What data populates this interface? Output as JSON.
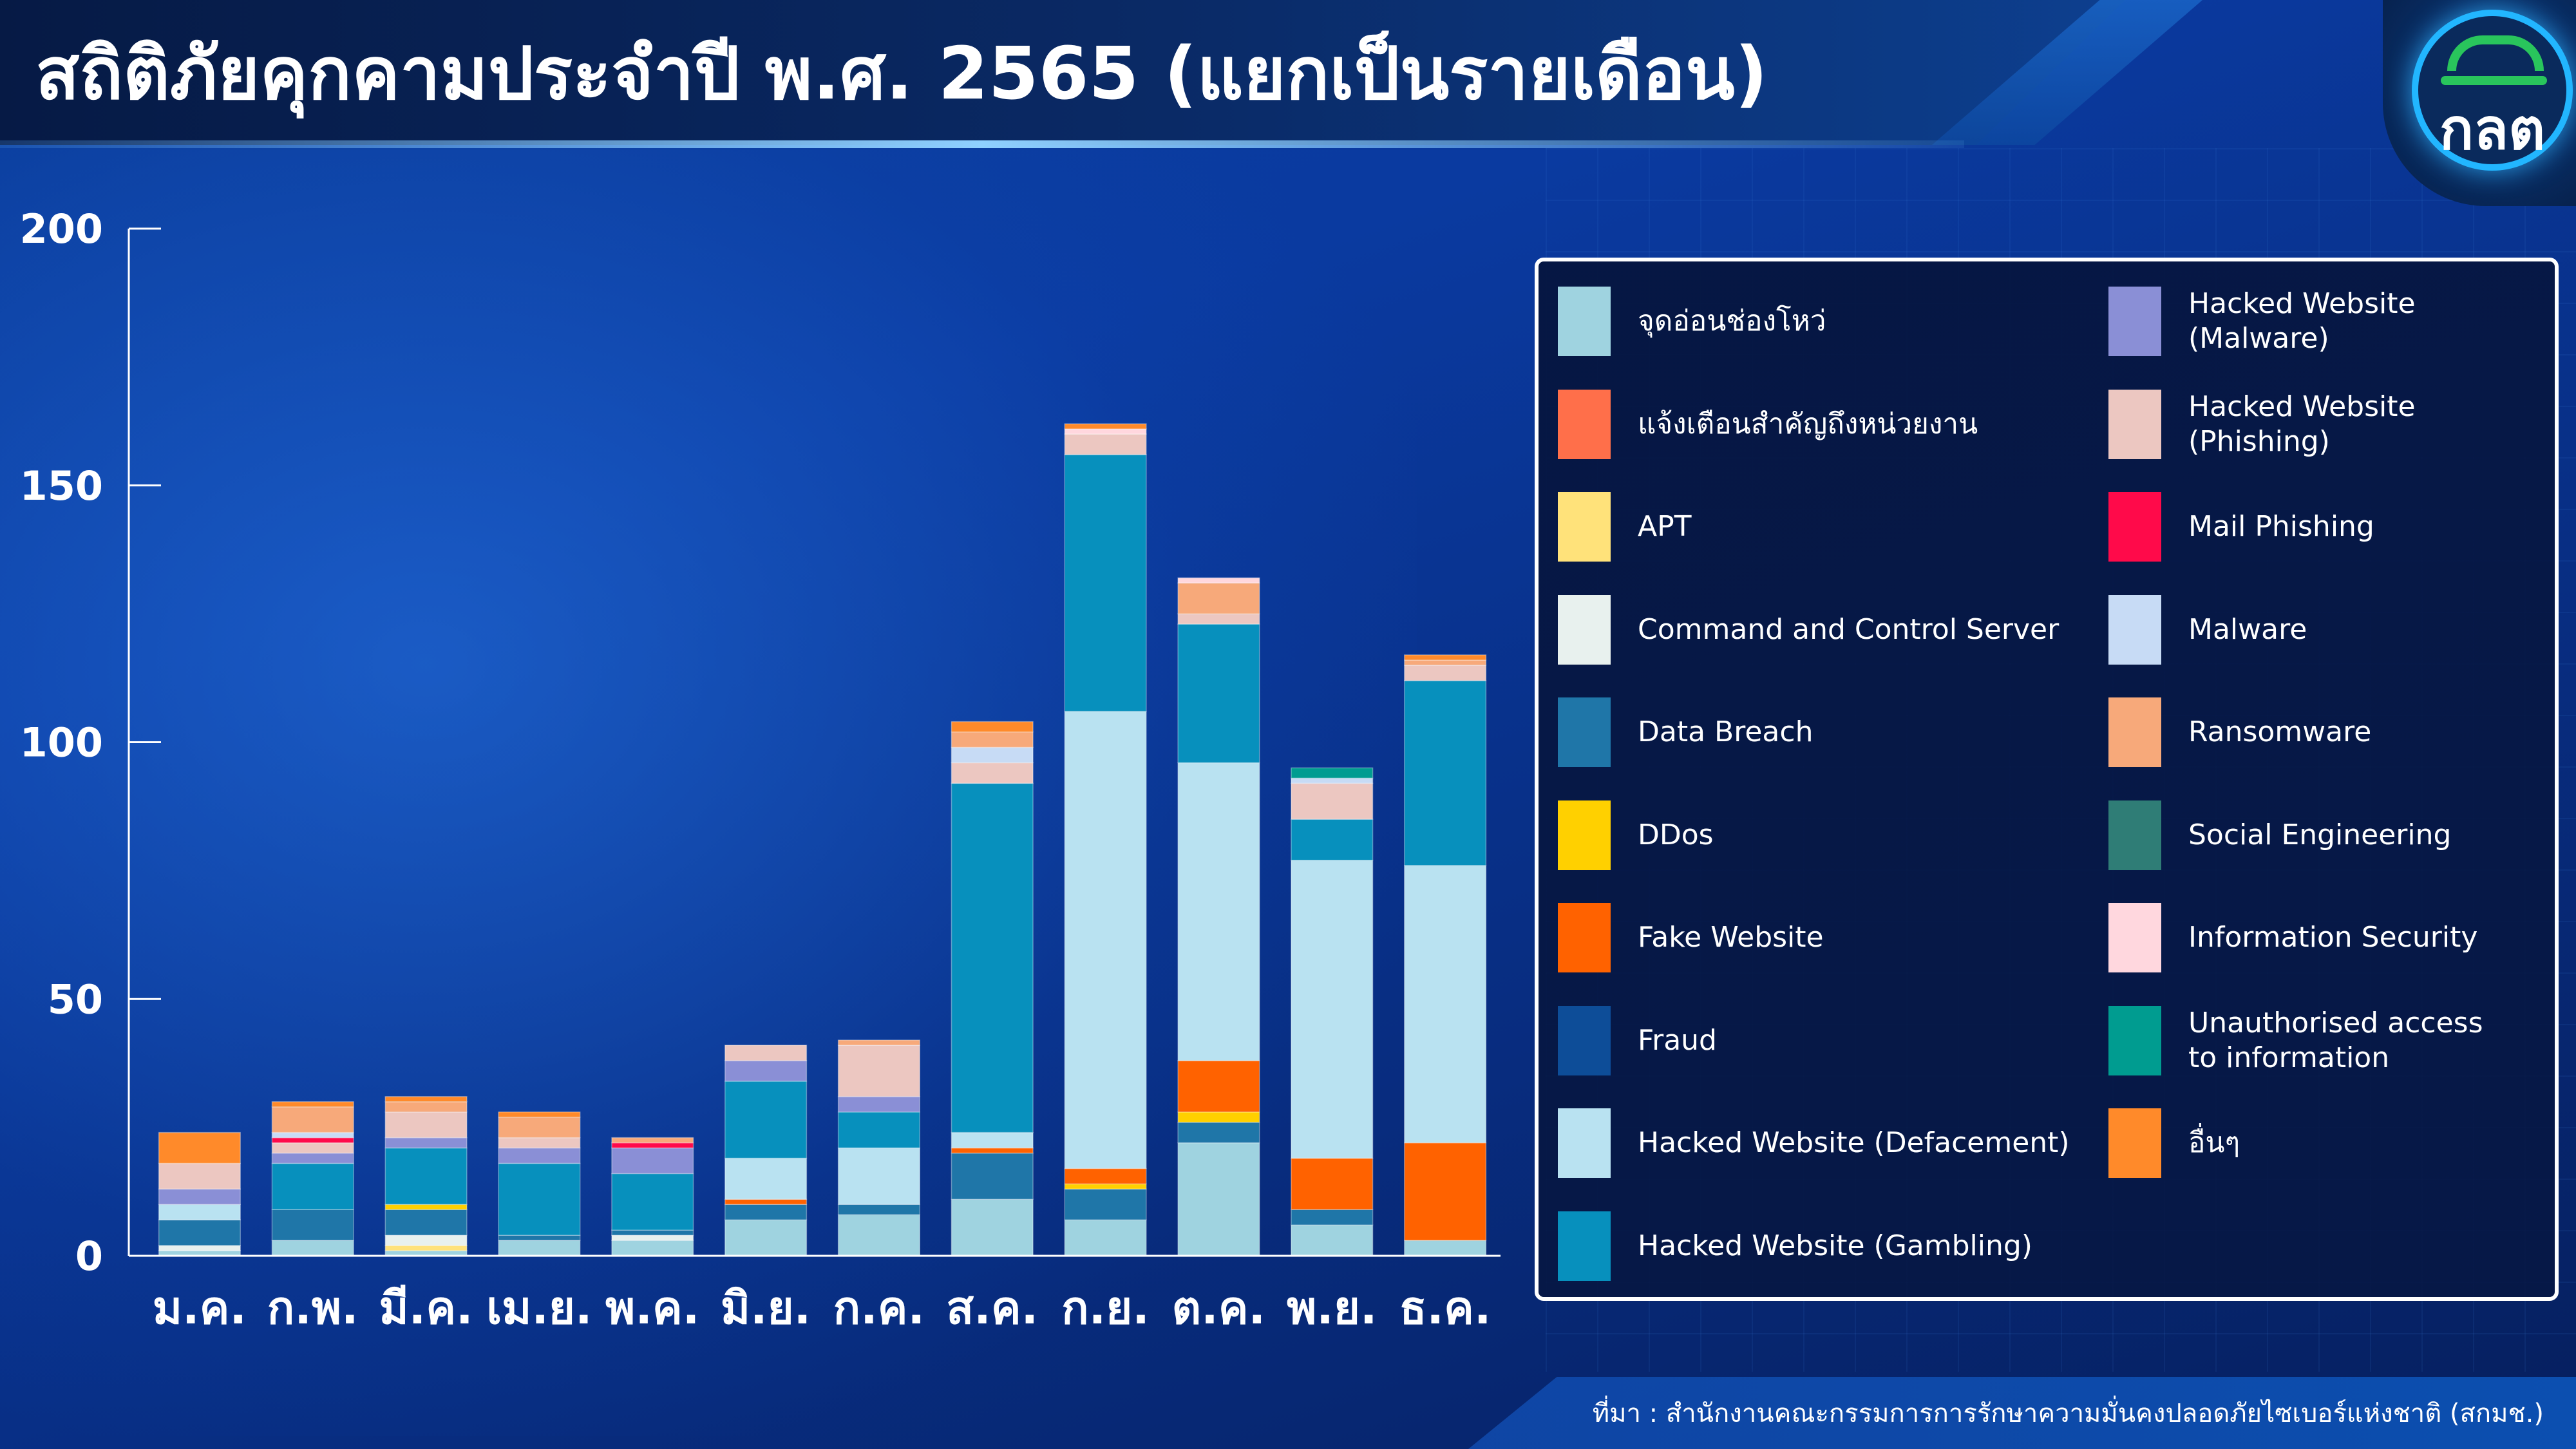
{
  "header": {
    "title": "สถิติภัยคุกคามประจำปี พ.ศ. 2565 (แยกเป็นรายเดือน)",
    "logo_text": "กลต"
  },
  "footer": {
    "source": "ที่มา : สำนักงานคณะกรรมการการรักษาความมั่นคงปลอดภัยไซเบอร์แห่งชาติ (สกมช.)"
  },
  "chart_data": {
    "type": "bar",
    "stacked": true,
    "ylim": [
      0,
      200
    ],
    "yticks": [
      0,
      50,
      100,
      150,
      200
    ],
    "grid": false,
    "legend_position": "right",
    "categories": [
      "ม.ค.",
      "ก.พ.",
      "มี.ค.",
      "เม.ย.",
      "พ.ค.",
      "มิ.ย.",
      "ก.ค.",
      "ส.ค.",
      "ก.ย.",
      "ต.ค.",
      "พ.ย.",
      "ธ.ค."
    ],
    "series": [
      {
        "name": "จุดอ่อนช่องโหว่",
        "color": "#9fd3e0",
        "values": [
          1,
          3,
          1,
          3,
          3,
          7,
          8,
          11,
          7,
          22,
          6,
          3
        ]
      },
      {
        "name": "แจ้งเตือนสำคัญถึงหน่วยงาน",
        "color": "#ff6f4a",
        "values": [
          0,
          0,
          0,
          0,
          0,
          0,
          0,
          0,
          0,
          0,
          0,
          0
        ]
      },
      {
        "name": "APT",
        "color": "#ffe27a",
        "values": [
          0,
          0,
          1,
          0,
          0,
          0,
          0,
          0,
          0,
          0,
          0,
          0
        ]
      },
      {
        "name": "Command and Control Server",
        "color": "#e8f1ee",
        "values": [
          1,
          0,
          2,
          0,
          1,
          0,
          0,
          0,
          0,
          0,
          0,
          0
        ]
      },
      {
        "name": "Data Breach",
        "color": "#1f76a8",
        "values": [
          5,
          6,
          5,
          1,
          1,
          3,
          2,
          9,
          6,
          4,
          3,
          0
        ]
      },
      {
        "name": "DDos",
        "color": "#ffd000",
        "values": [
          0,
          0,
          1,
          0,
          0,
          0,
          0,
          0,
          1,
          2,
          0,
          0
        ]
      },
      {
        "name": "Fake Website",
        "color": "#ff6200",
        "values": [
          0,
          0,
          0,
          0,
          0,
          1,
          0,
          1,
          3,
          10,
          10,
          19
        ]
      },
      {
        "name": "Fraud",
        "color": "#0d4d98",
        "values": [
          0,
          0,
          0,
          0,
          0,
          0,
          0,
          0,
          0,
          0,
          0,
          0
        ]
      },
      {
        "name": "Hacked Website (Defacement)",
        "color": "#b9e2f1",
        "values": [
          3,
          0,
          0,
          0,
          0,
          8,
          11,
          3,
          89,
          58,
          58,
          54
        ]
      },
      {
        "name": "Hacked Website (Gambling)",
        "color": "#0790bd",
        "values": [
          0,
          9,
          11,
          14,
          11,
          15,
          7,
          68,
          50,
          27,
          8,
          36
        ]
      },
      {
        "name": "Hacked Website (Malware)",
        "color": "#8a8fd6",
        "values": [
          3,
          2,
          2,
          3,
          5,
          4,
          3,
          0,
          0,
          0,
          0,
          0
        ]
      },
      {
        "name": "Hacked Website (Phishing)",
        "color": "#ecc7c1",
        "values": [
          5,
          2,
          5,
          2,
          0,
          3,
          10,
          4,
          4,
          2,
          7,
          3
        ]
      },
      {
        "name": "Mail Phishing",
        "color": "#ff0a4a",
        "values": [
          0,
          1,
          0,
          0,
          1,
          0,
          0,
          0,
          0,
          0,
          0,
          0
        ]
      },
      {
        "name": "Malware",
        "color": "#c7dbf5",
        "values": [
          0,
          1,
          0,
          0,
          0,
          0,
          0,
          3,
          0,
          0,
          1,
          0
        ]
      },
      {
        "name": "Ransomware",
        "color": "#f7a97a",
        "values": [
          0,
          5,
          2,
          4,
          1,
          0,
          1,
          3,
          0,
          6,
          0,
          1
        ]
      },
      {
        "name": "Social Engineering",
        "color": "#2f7d76",
        "values": [
          0,
          0,
          0,
          0,
          0,
          0,
          0,
          0,
          0,
          0,
          0,
          0
        ]
      },
      {
        "name": "Information Security",
        "color": "#ffd7de",
        "values": [
          0,
          0,
          0,
          0,
          0,
          0,
          0,
          0,
          1,
          1,
          0,
          0
        ]
      },
      {
        "name": "Unauthorised access\nto information",
        "color": "#009c90",
        "values": [
          0,
          0,
          0,
          0,
          0,
          0,
          0,
          0,
          0,
          0,
          2,
          0
        ]
      },
      {
        "name": "อื่นๆ",
        "color": "#ff8a2a",
        "values": [
          6,
          1,
          1,
          1,
          0,
          0,
          0,
          2,
          1,
          0,
          0,
          1
        ]
      }
    ]
  }
}
